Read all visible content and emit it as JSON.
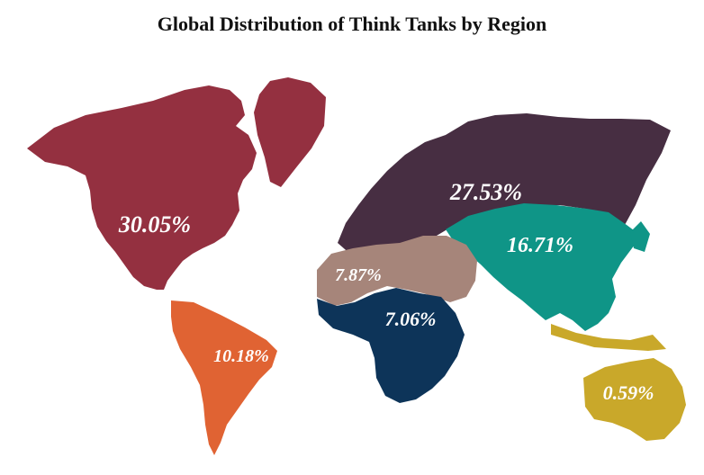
{
  "title": "Global Distribution of Think Tanks by Region",
  "regions": {
    "north_america": {
      "label": "30.05%",
      "value": 30.05,
      "color": "#943040"
    },
    "europe_central_asia": {
      "label": "27.53%",
      "value": 27.53,
      "color": "#472e42"
    },
    "asia": {
      "label": "16.71%",
      "value": 16.71,
      "color": "#0f9587"
    },
    "south_central_america": {
      "label": "10.18%",
      "value": 10.18,
      "color": "#e06333"
    },
    "mena": {
      "label": "7.87%",
      "value": 7.87,
      "color": "#a6857a"
    },
    "sub_saharan_africa": {
      "label": "7.06%",
      "value": 7.06,
      "color": "#0d3459"
    },
    "oceania": {
      "label": "0.59%",
      "value": 0.59,
      "color": "#c9a82a"
    }
  }
}
